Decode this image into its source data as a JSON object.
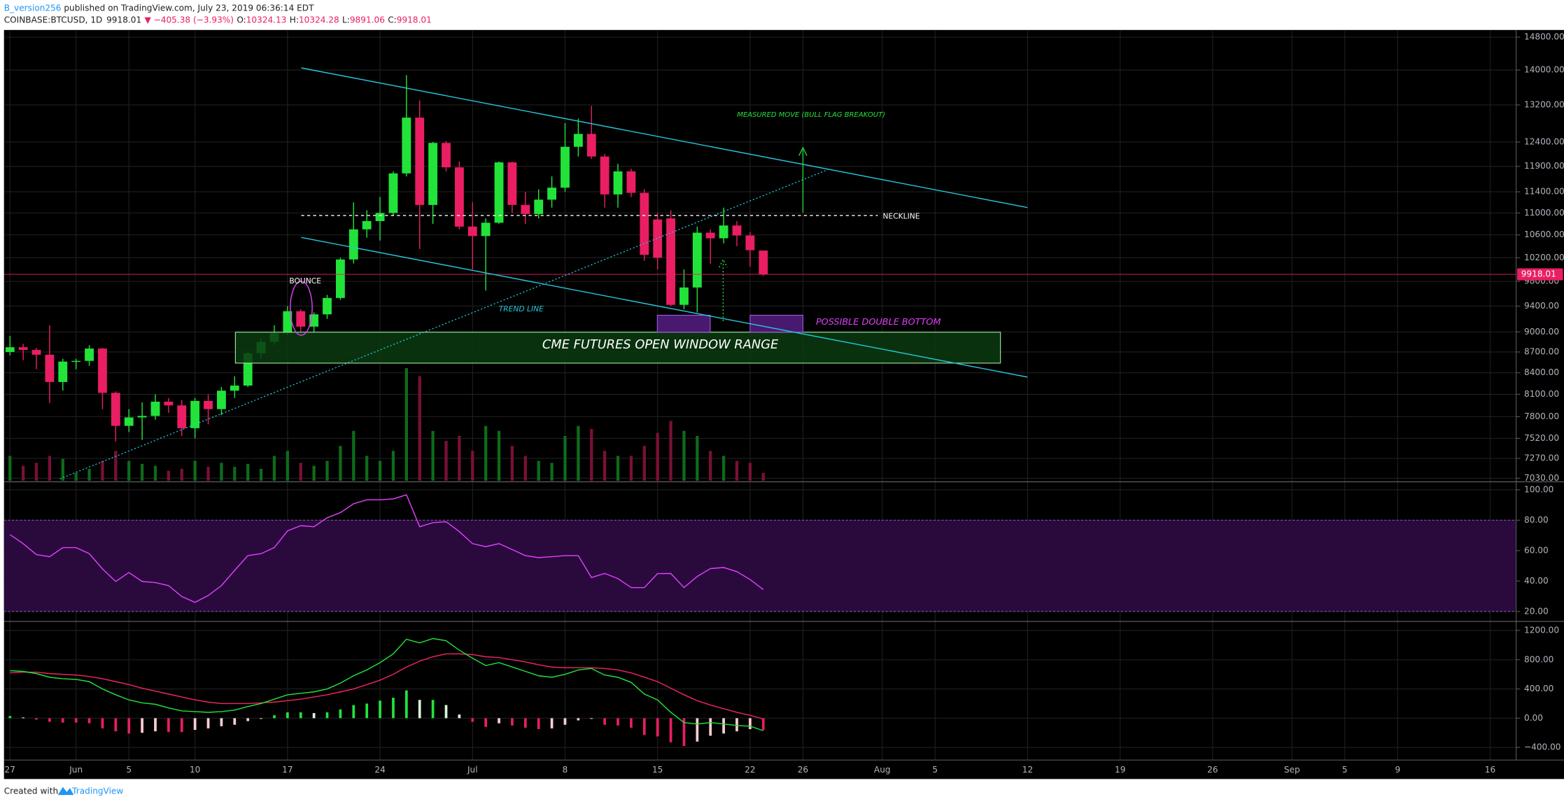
{
  "header": {
    "author": "B_version256",
    "published": " published on TradingView.com, July 23, 2019 06:36:14 EDT",
    "symbol": "COINBASE:BTCUSD, 1D",
    "change": "▼ −405.38 (−3.93%)",
    "o": "O:",
    "h": "H:",
    "l": "L:",
    "c": "C:"
  },
  "footer": {
    "prefix": "Created with",
    "brand": "TradingView"
  },
  "chart_data": [
    {
      "type": "candlestick",
      "log_scale": true,
      "grid": true,
      "up_color": "#22e33a",
      "down_color": "#e91e63",
      "volume_up_color": "#0e6b1a",
      "volume_down_color": "#7a1035",
      "x": [
        "05-27",
        "05-28",
        "05-29",
        "05-30",
        "05-31",
        "06-01",
        "06-02",
        "06-03",
        "06-04",
        "06-05",
        "06-06",
        "06-07",
        "06-08",
        "06-09",
        "06-10",
        "06-11",
        "06-12",
        "06-13",
        "06-14",
        "06-15",
        "06-16",
        "06-17",
        "06-18",
        "06-19",
        "06-20",
        "06-21",
        "06-22",
        "06-23",
        "06-24",
        "06-25",
        "06-26",
        "06-27",
        "06-28",
        "06-29",
        "06-30",
        "07-01",
        "07-02",
        "07-03",
        "07-04",
        "07-05",
        "07-06",
        "07-07",
        "07-08",
        "07-09",
        "07-10",
        "07-11",
        "07-12",
        "07-13",
        "07-14",
        "07-15",
        "07-16",
        "07-17",
        "07-18",
        "07-19",
        "07-20",
        "07-21",
        "07-22",
        "07-23"
      ],
      "open": [
        8700,
        8770,
        8730,
        8660,
        8270,
        8560,
        8570,
        8750,
        8120,
        7680,
        7790,
        7810,
        8000,
        7950,
        7650,
        8010,
        7900,
        8150,
        8220,
        8680,
        8850,
        8980,
        9320,
        9080,
        9270,
        9530,
        10170,
        10700,
        10850,
        11000,
        11760,
        12920,
        11150,
        12380,
        11880,
        10750,
        10580,
        10820,
        11980,
        11150,
        10980,
        11250,
        11480,
        12300,
        12570,
        12100,
        11350,
        11800,
        11380,
        10880,
        10900,
        9420,
        9700,
        10640,
        10540,
        10770,
        10590,
        10324.13
      ],
      "high": [
        8940,
        8820,
        8760,
        9100,
        8600,
        8600,
        8800,
        8760,
        8140,
        7900,
        7990,
        8100,
        8050,
        8020,
        8050,
        8100,
        8200,
        8350,
        8700,
        8900,
        9100,
        9400,
        9350,
        9300,
        9580,
        10200,
        11200,
        11050,
        11300,
        11800,
        13880,
        13300,
        12400,
        12420,
        12000,
        11200,
        10900,
        12000,
        12000,
        11400,
        11450,
        11700,
        12800,
        12900,
        13180,
        12150,
        11950,
        11850,
        11450,
        11000,
        11050,
        10000,
        10750,
        10700,
        11100,
        10850,
        10650,
        10324.28
      ],
      "low": [
        8650,
        8580,
        8450,
        7980,
        8150,
        8450,
        8500,
        7900,
        7480,
        7600,
        7500,
        7760,
        7850,
        7550,
        7520,
        7700,
        7820,
        8050,
        8200,
        8600,
        8800,
        8950,
        9000,
        9000,
        9200,
        9500,
        10100,
        10550,
        10500,
        10950,
        11700,
        10350,
        10800,
        11800,
        10700,
        10000,
        9650,
        10800,
        11000,
        10800,
        10900,
        11100,
        11400,
        12100,
        12050,
        11100,
        11100,
        11300,
        10150,
        10000,
        9400,
        9350,
        9300,
        10100,
        10450,
        10400,
        10050,
        9891.06
      ],
      "close": [
        8770,
        8730,
        8660,
        8270,
        8560,
        8570,
        8750,
        8120,
        7680,
        7790,
        7810,
        8000,
        7950,
        7650,
        8010,
        7900,
        8150,
        8220,
        8680,
        8850,
        8980,
        9320,
        9080,
        9270,
        9530,
        10170,
        10700,
        10850,
        11000,
        11760,
        12920,
        11150,
        12380,
        11880,
        10750,
        10580,
        10820,
        11980,
        11150,
        10980,
        11250,
        11480,
        12300,
        12570,
        12100,
        11350,
        11800,
        11380,
        10250,
        10200,
        9420,
        9700,
        10640,
        10540,
        10770,
        10590,
        10330,
        9918.01
      ],
      "volume": [
        10000,
        6000,
        7200,
        10000,
        8800,
        3200,
        4800,
        8000,
        12000,
        8000,
        6800,
        6000,
        4000,
        4800,
        8000,
        5600,
        7200,
        5600,
        6800,
        4800,
        10000,
        12000,
        7200,
        6000,
        8000,
        14000,
        20000,
        10000,
        8000,
        12000,
        45200,
        42000,
        20000,
        16000,
        18000,
        12000,
        22000,
        20000,
        14000,
        10000,
        8000,
        7200,
        18000,
        22000,
        20800,
        12000,
        10000,
        10000,
        14000,
        19200,
        24000,
        20000,
        18000,
        12000,
        10000,
        8000,
        7200,
        3200
      ],
      "ylim": [
        7000,
        14980
      ],
      "yticks": [
        {
          "value": 14800,
          "label": "14800.00"
        },
        {
          "value": 14000,
          "label": "14000.00"
        },
        {
          "value": 13200,
          "label": "13200.00"
        },
        {
          "value": 12400,
          "label": "12400.00"
        },
        {
          "value": 11900,
          "label": "11900.00"
        },
        {
          "value": 11400,
          "label": "11400.00"
        },
        {
          "value": 11000,
          "label": "11000.00"
        },
        {
          "value": 10600,
          "label": "10600.00"
        },
        {
          "value": 10200,
          "label": "10200.00"
        },
        {
          "value": 9800,
          "label": "9800.00"
        },
        {
          "value": 9400,
          "label": "9400.00"
        },
        {
          "value": 9000,
          "label": "9000.00"
        },
        {
          "value": 8700,
          "label": "8700.00"
        },
        {
          "value": 8400,
          "label": "8400.00"
        },
        {
          "value": 8100,
          "label": "8100.00"
        },
        {
          "value": 7800,
          "label": "7800.00"
        },
        {
          "value": 7520,
          "label": "7520.00"
        },
        {
          "value": 7270,
          "label": "7270.00"
        },
        {
          "value": 7030,
          "label": "7030.00"
        }
      ],
      "xticks": [
        {
          "value": "05-27",
          "label": "27"
        },
        {
          "value": "06-01",
          "label": "Jun"
        },
        {
          "value": "06-05",
          "label": "5"
        },
        {
          "value": "06-10",
          "label": "10"
        },
        {
          "value": "06-17",
          "label": "17"
        },
        {
          "value": "06-24",
          "label": "24"
        },
        {
          "value": "07-01",
          "label": "Jul"
        },
        {
          "value": "07-08",
          "label": "8"
        },
        {
          "value": "07-15",
          "label": "15"
        },
        {
          "value": "07-22",
          "label": "22"
        },
        {
          "value": "07-26",
          "label": "26"
        },
        {
          "value": "08-01",
          "label": "Aug"
        },
        {
          "value": "08-05",
          "label": "5"
        },
        {
          "value": "08-12",
          "label": "12"
        },
        {
          "value": "08-19",
          "label": "19"
        },
        {
          "value": "08-26",
          "label": "26"
        },
        {
          "value": "09-01",
          "label": "Sep"
        },
        {
          "value": "09-05",
          "label": "5"
        },
        {
          "value": "09-09",
          "label": "9"
        },
        {
          "value": "09-16",
          "label": "16"
        }
      ],
      "last_price_color": "#e91e63",
      "annotations": {
        "bounce": "BOUNCE",
        "trend_line": "TREND LINE",
        "neckline": "NECKLINE",
        "measured_move": "MEASURED MOVE (BULL FLAG BREAKOUT)",
        "cme": "CME FUTURES OPEN WINDOW RANGE",
        "double_bottom": "POSSIBLE DOUBLE BOTTOM"
      }
    },
    {
      "type": "line",
      "grid": true,
      "color": "#e040fb",
      "band": [
        20,
        80
      ],
      "band_color": "#2a0a3d",
      "values": [
        70.5,
        64.6,
        57.4,
        56,
        62,
        62,
        58,
        48,
        39.7,
        45.6,
        39.7,
        39,
        37,
        29.8,
        26,
        30.5,
        37,
        47,
        56.7,
        58,
        62,
        73,
        76.4,
        75.7,
        81.6,
        85,
        90.8,
        93.4,
        93.4,
        94,
        96.7,
        75.7,
        78.4,
        79,
        72.5,
        64.6,
        62.6,
        64.6,
        60.7,
        56.7,
        55.4,
        56,
        56.7,
        56.7,
        42.3,
        45,
        41.6,
        35.7,
        35.7,
        44.9,
        45,
        35.7,
        43,
        48.2,
        48.9,
        46.2,
        41,
        34.4
      ],
      "ylim": [
        14.1,
        104.6
      ],
      "yticks": [
        {
          "value": 100,
          "label": "100.00"
        },
        {
          "value": 80,
          "label": "80.00"
        },
        {
          "value": 60,
          "label": "60.00"
        },
        {
          "value": 40,
          "label": "40.00"
        },
        {
          "value": 20,
          "label": "20.00"
        }
      ]
    },
    {
      "type": "macd",
      "grid": true,
      "macd_color": "#22e33a",
      "signal_color": "#f0275d",
      "histogram_colors": [
        "#22e33a",
        "#d8f5d8",
        "#e91e63",
        "#ffcdd2"
      ],
      "macd": [
        650,
        640,
        610,
        560,
        540,
        530,
        500,
        400,
        320,
        250,
        210,
        190,
        140,
        100,
        90,
        80,
        90,
        110,
        160,
        200,
        260,
        320,
        340,
        360,
        400,
        480,
        580,
        660,
        760,
        880,
        1080,
        1030,
        1090,
        1060,
        930,
        820,
        720,
        760,
        700,
        640,
        580,
        560,
        600,
        660,
        680,
        590,
        560,
        490,
        330,
        250,
        80,
        -60,
        -80,
        -60,
        -80,
        -100,
        -110,
        -170
      ],
      "signal": [
        620,
        630,
        630,
        610,
        600,
        590,
        570,
        540,
        500,
        460,
        410,
        370,
        330,
        290,
        250,
        220,
        200,
        200,
        200,
        210,
        220,
        240,
        260,
        290,
        320,
        360,
        400,
        460,
        520,
        600,
        700,
        780,
        840,
        880,
        880,
        870,
        840,
        830,
        800,
        770,
        730,
        700,
        690,
        690,
        690,
        680,
        660,
        620,
        560,
        500,
        410,
        320,
        240,
        180,
        130,
        80,
        40,
        -10
      ],
      "histogram": [
        30,
        10,
        -20,
        -50,
        -60,
        -60,
        -70,
        -140,
        -180,
        -210,
        -200,
        -180,
        -190,
        -190,
        -160,
        -140,
        -110,
        -90,
        -40,
        -10,
        40,
        80,
        80,
        70,
        80,
        120,
        180,
        200,
        240,
        280,
        380,
        250,
        250,
        180,
        50,
        -50,
        -120,
        -70,
        -100,
        -130,
        -150,
        -140,
        -90,
        -30,
        -10,
        -90,
        -100,
        -130,
        -230,
        -250,
        -330,
        -380,
        -320,
        -240,
        -210,
        -180,
        -150,
        -160
      ],
      "ylim": [
        -573,
        1310
      ],
      "yticks": [
        {
          "value": 1200,
          "label": "1200.00"
        },
        {
          "value": 800,
          "label": "800.00"
        },
        {
          "value": 400,
          "label": "400.00"
        },
        {
          "value": 0,
          "label": "0.00"
        },
        {
          "value": -400,
          "label": "−400.00"
        }
      ]
    }
  ]
}
